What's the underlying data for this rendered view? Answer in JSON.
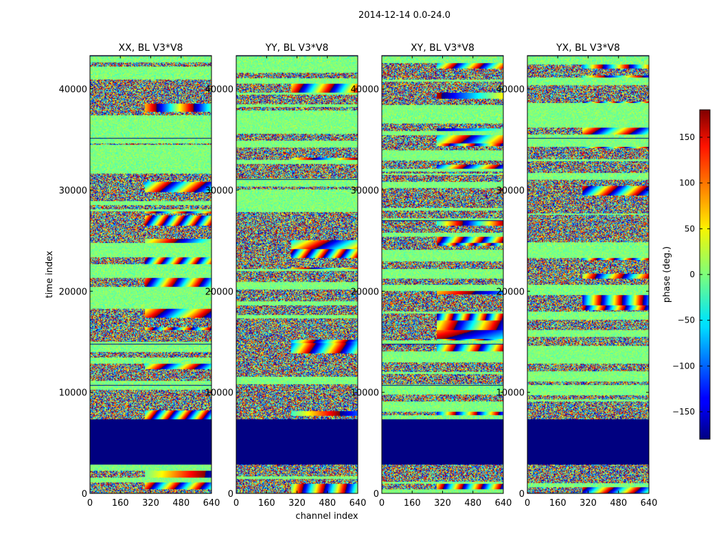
{
  "chart_data": {
    "type": "heatmap",
    "title": "2014-12-14 0.0-24.0",
    "xlabel": "channel index",
    "ylabel": "time index",
    "xlim": [
      0,
      640
    ],
    "ylim": [
      0,
      43300
    ],
    "x_ticks": [
      0,
      160,
      320,
      480,
      640
    ],
    "y_ticks": [
      0,
      10000,
      20000,
      30000,
      40000
    ],
    "x_tick_labels": [
      "0",
      "160",
      "320",
      "480",
      "640"
    ],
    "y_tick_labels": [
      "0",
      "10000",
      "20000",
      "30000",
      "40000"
    ],
    "panels": [
      {
        "title": "XX, BL V3*V8",
        "polarization": "XX"
      },
      {
        "title": "YY, BL V3*V8",
        "polarization": "YY"
      },
      {
        "title": "XY, BL V3*V8",
        "polarization": "XY"
      },
      {
        "title": "YX, BL V3*V8",
        "polarization": "YX"
      }
    ],
    "flagged_time_range": [
      2900,
      7300
    ],
    "flagged_value": -180,
    "colorbar": {
      "label": "phase (deg.)",
      "range": [
        -180,
        180
      ],
      "ticks": [
        150,
        100,
        50,
        0,
        -50,
        -100,
        -150
      ],
      "tick_labels": [
        "150",
        "100",
        "50",
        "0",
        "−50",
        "−100",
        "−150"
      ],
      "colormap": "jet"
    }
  }
}
